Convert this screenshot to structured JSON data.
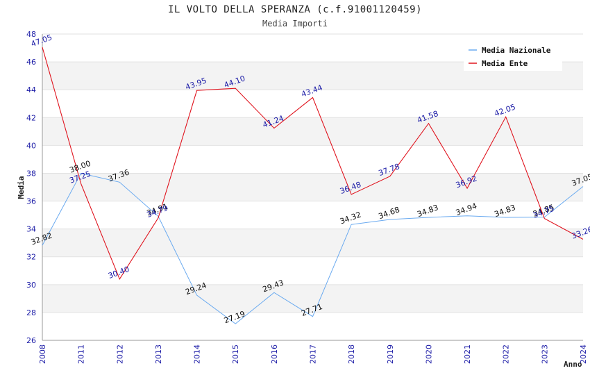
{
  "chart_data": {
    "type": "line",
    "title": "IL VOLTO DELLA SPERANZA (c.f.91001120459)",
    "subtitle": "Media Importi",
    "xlabel": "Anno",
    "ylabel": "Media",
    "categories": [
      "2008",
      "2011",
      "2012",
      "2013",
      "2014",
      "2015",
      "2016",
      "2017",
      "2018",
      "2019",
      "2020",
      "2021",
      "2022",
      "2023",
      "2024"
    ],
    "ylim": [
      26,
      48
    ],
    "yticks": [
      26,
      28,
      30,
      32,
      34,
      36,
      38,
      40,
      42,
      44,
      46,
      48
    ],
    "grid": true,
    "legend_position": "top-right",
    "series": [
      {
        "name": "Media Nazionale",
        "color": "#6aaaf0",
        "label_color": "#111111",
        "values": [
          32.82,
          38.0,
          37.36,
          34.91,
          29.24,
          27.19,
          29.43,
          27.71,
          34.32,
          34.68,
          34.83,
          34.94,
          34.83,
          34.85,
          37.05
        ],
        "labels": [
          "32.82",
          "38.00",
          "37.36",
          "34.91",
          "29.24",
          "27.19",
          "29.43",
          "27.71",
          "34.32",
          "34.68",
          "34.83",
          "34.94",
          "34.83",
          "34.85",
          "37.05"
        ]
      },
      {
        "name": "Media Ente",
        "color": "#e0141e",
        "label_color": "#1a1aa6",
        "values": [
          47.05,
          37.25,
          30.4,
          34.79,
          43.95,
          44.1,
          41.24,
          43.44,
          36.48,
          37.78,
          41.58,
          36.92,
          42.05,
          34.75,
          33.26
        ],
        "labels": [
          "47.05",
          "37.25",
          "30.40",
          "34.79",
          "43.95",
          "44.10",
          "41.24",
          "43.44",
          "36.48",
          "37.78",
          "41.58",
          "36.92",
          "42.05",
          "34.75",
          "33.26"
        ]
      }
    ]
  }
}
